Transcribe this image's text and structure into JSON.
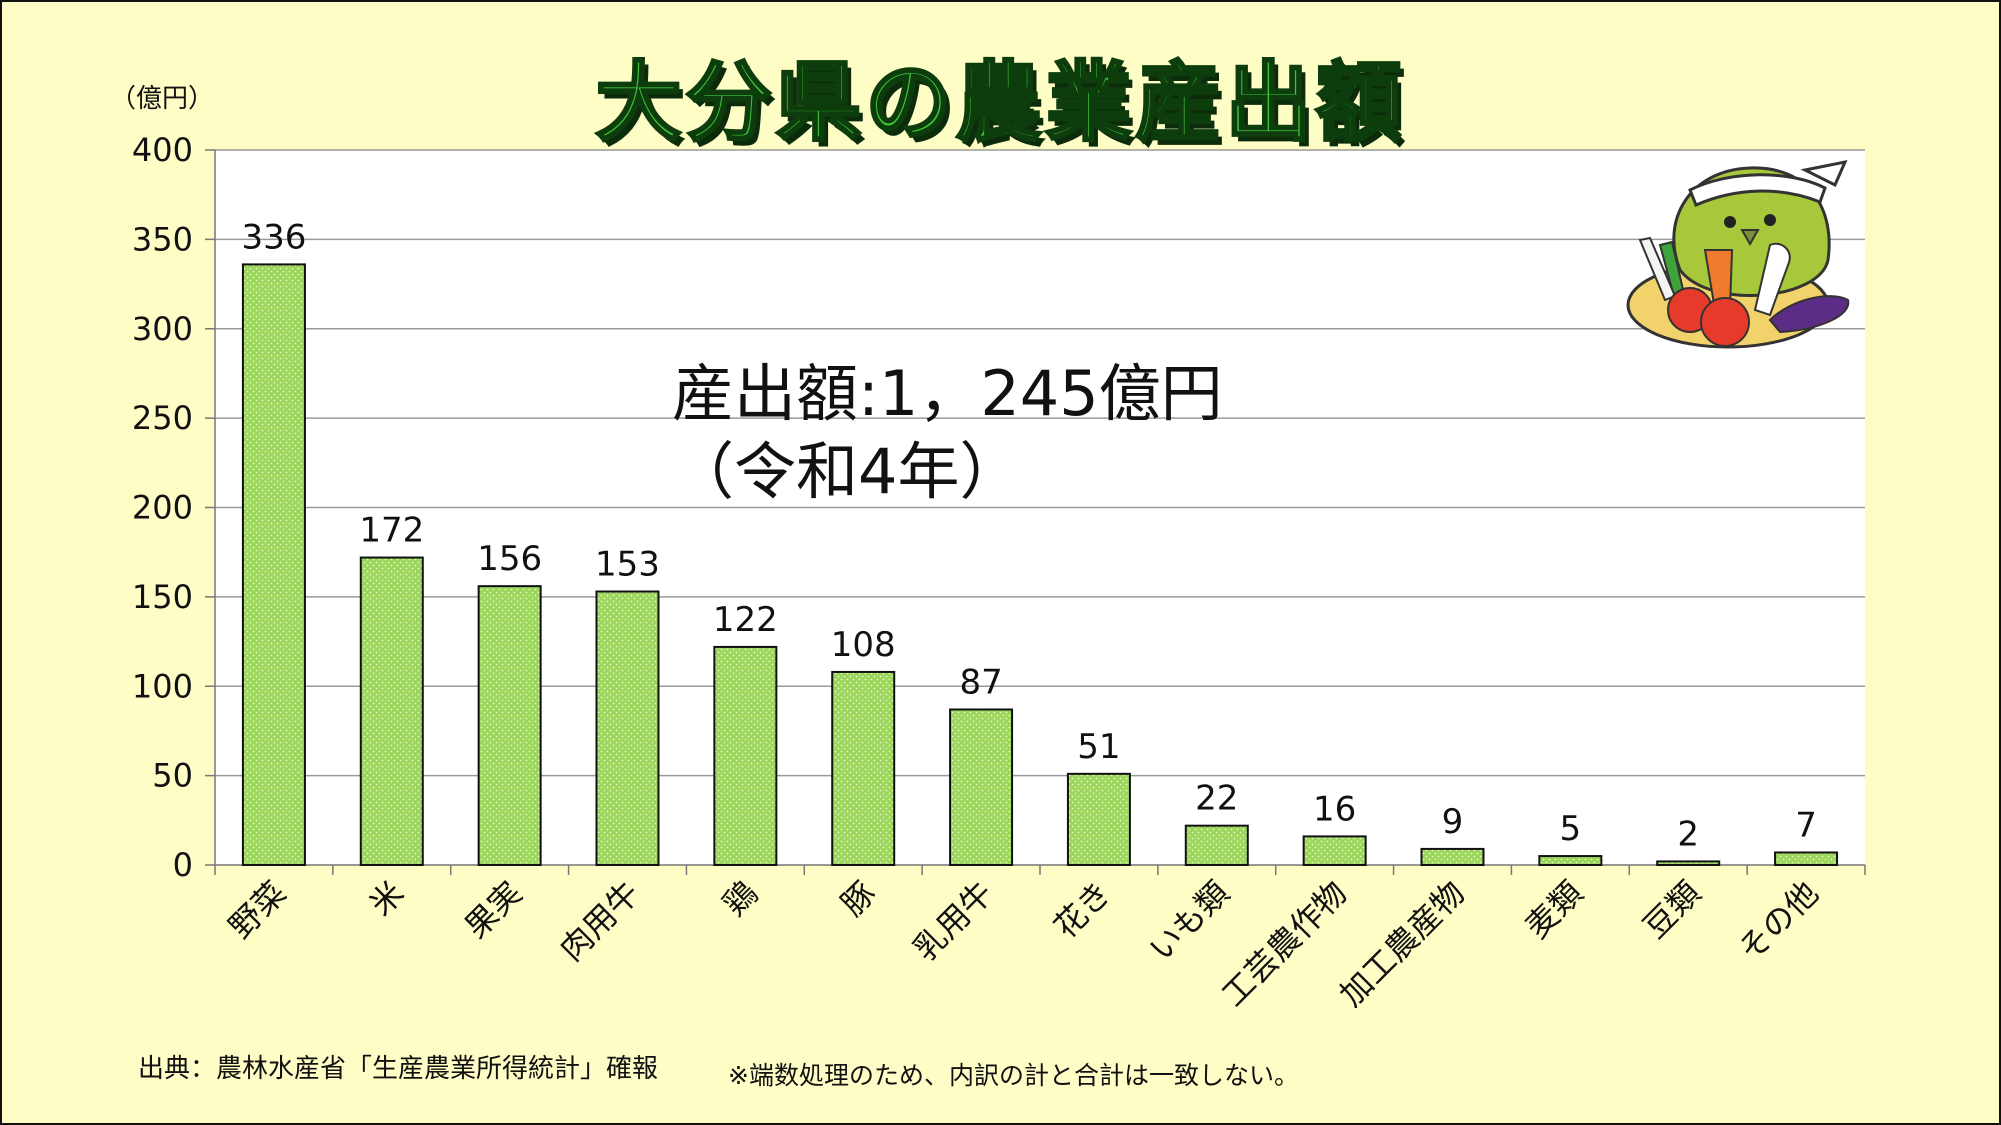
{
  "title": "大分県の農業産出額",
  "unit": "（億円）",
  "total_label": "産出額:1，245億円",
  "total_year": "（令和4年）",
  "source": "出典：農林水産省「生産農業所得統計」確報",
  "note": "※端数処理のため、内訳の計と合計は一致しない。",
  "colors": {
    "bar_fill": "#9bd65a",
    "bar_dots": "#e8f6cf",
    "background": "#fffdc6",
    "plot_bg": "#ffffff",
    "title_fill": "#3fc43a"
  },
  "mascot_icon": "bird-mascot-with-vegetables",
  "chart_data": {
    "type": "bar",
    "title": "大分県の農業産出額",
    "ylabel": "（億円）",
    "categories": [
      "野菜",
      "米",
      "果実",
      "肉用牛",
      "鶏",
      "豚",
      "乳用牛",
      "花き",
      "いも類",
      "工芸農作物",
      "加工農産物",
      "麦類",
      "豆類",
      "その他"
    ],
    "values": [
      336,
      172,
      156,
      153,
      122,
      108,
      87,
      51,
      22,
      16,
      9,
      5,
      2,
      7
    ],
    "ylim": [
      0,
      400
    ],
    "yticks": [
      0,
      50,
      100,
      150,
      200,
      250,
      300,
      350,
      400
    ],
    "grid": true
  }
}
